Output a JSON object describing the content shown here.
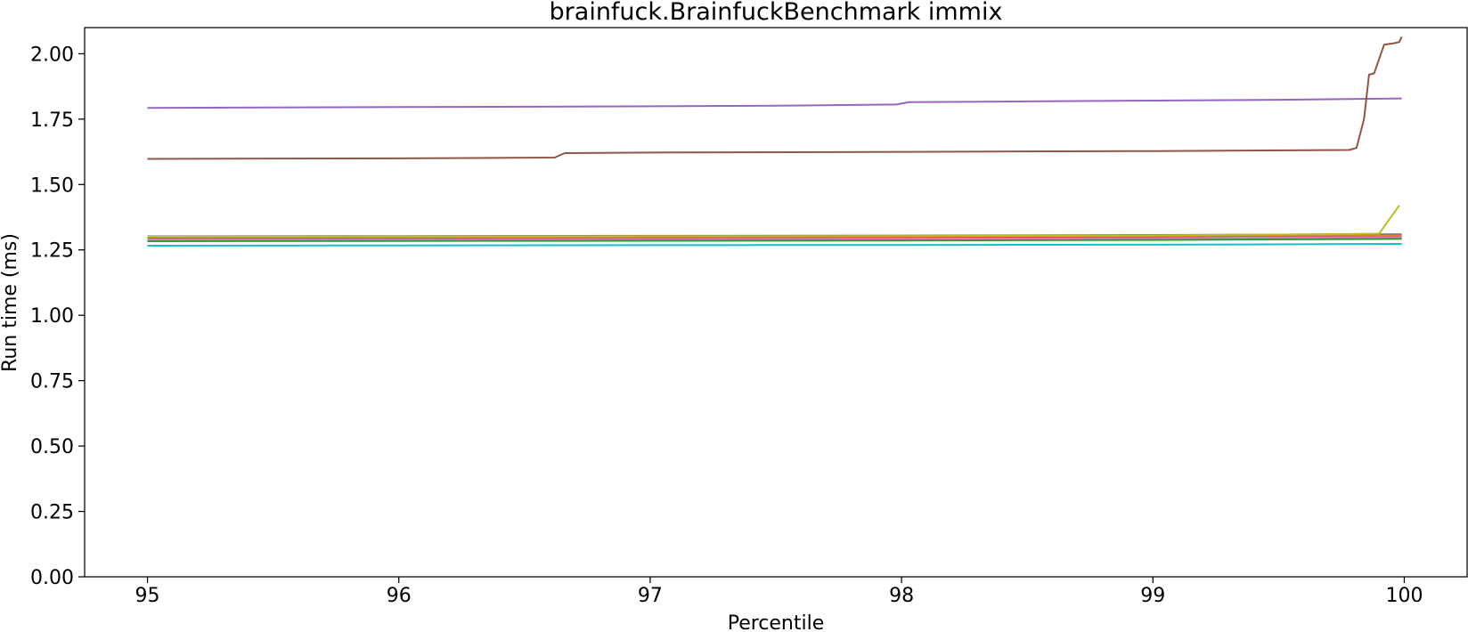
{
  "chart_data": {
    "type": "line",
    "title": "brainfuck.BrainfuckBenchmark immix",
    "xlabel": "Percentile",
    "ylabel": "Run time (ms)",
    "xlim": [
      94.75,
      100.25
    ],
    "ylim": [
      0.0,
      2.1
    ],
    "xticks": [
      95,
      96,
      97,
      98,
      99,
      100
    ],
    "xtick_labels": [
      "95",
      "96",
      "97",
      "98",
      "99",
      "100"
    ],
    "yticks": [
      0.0,
      0.25,
      0.5,
      0.75,
      1.0,
      1.25,
      1.5,
      1.75,
      2.0
    ],
    "ytick_labels": [
      "0.00",
      "0.25",
      "0.50",
      "0.75",
      "1.00",
      "1.25",
      "1.50",
      "1.75",
      "2.00"
    ],
    "grid": false,
    "legend": "none",
    "series": [
      {
        "color": "#1f77b4",
        "x": [
          95,
          96,
          97,
          98,
          99,
          99.99
        ],
        "y": [
          1.288,
          1.289,
          1.29,
          1.291,
          1.293,
          1.296
        ]
      },
      {
        "color": "#ff7f0e",
        "x": [
          95,
          96,
          97,
          98,
          99,
          99.99
        ],
        "y": [
          1.296,
          1.297,
          1.298,
          1.299,
          1.301,
          1.305
        ]
      },
      {
        "color": "#2ca02c",
        "x": [
          95,
          96,
          97,
          98,
          99,
          99.99
        ],
        "y": [
          1.283,
          1.284,
          1.285,
          1.286,
          1.288,
          1.292
        ]
      },
      {
        "color": "#d62728",
        "x": [
          95,
          96,
          97,
          98,
          99,
          99.99
        ],
        "y": [
          1.292,
          1.293,
          1.294,
          1.295,
          1.297,
          1.3
        ]
      },
      {
        "color": "#9467bd",
        "x": [
          95,
          96,
          97,
          97.5,
          97.98,
          98.03,
          98.5,
          99,
          99.5,
          99.99
        ],
        "y": [
          1.793,
          1.796,
          1.799,
          1.801,
          1.806,
          1.815,
          1.818,
          1.821,
          1.824,
          1.829
        ]
      },
      {
        "color": "#8c564b",
        "x": [
          95,
          96,
          96.62,
          96.66,
          97,
          98,
          99,
          99.78,
          99.81,
          99.84,
          99.86,
          99.88,
          99.9,
          99.92,
          99.96,
          99.98,
          99.99
        ],
        "y": [
          1.598,
          1.6,
          1.603,
          1.62,
          1.622,
          1.625,
          1.628,
          1.632,
          1.64,
          1.75,
          1.92,
          1.925,
          1.98,
          2.035,
          2.04,
          2.045,
          2.065
        ]
      },
      {
        "color": "#e377c2",
        "x": [
          95,
          96,
          97,
          98,
          99,
          99.99
        ],
        "y": [
          1.29,
          1.291,
          1.292,
          1.293,
          1.295,
          1.299
        ]
      },
      {
        "color": "#7f7f7f",
        "x": [
          95,
          96,
          97,
          98,
          99,
          99.99
        ],
        "y": [
          1.302,
          1.303,
          1.304,
          1.305,
          1.307,
          1.31
        ]
      },
      {
        "color": "#bcbd22",
        "x": [
          95,
          96,
          97,
          98,
          99,
          99.9,
          99.98
        ],
        "y": [
          1.3,
          1.301,
          1.302,
          1.303,
          1.305,
          1.312,
          1.42
        ]
      },
      {
        "color": "#17becf",
        "x": [
          95,
          96,
          97,
          98,
          99,
          99.99
        ],
        "y": [
          1.266,
          1.267,
          1.268,
          1.269,
          1.27,
          1.273
        ]
      }
    ]
  }
}
